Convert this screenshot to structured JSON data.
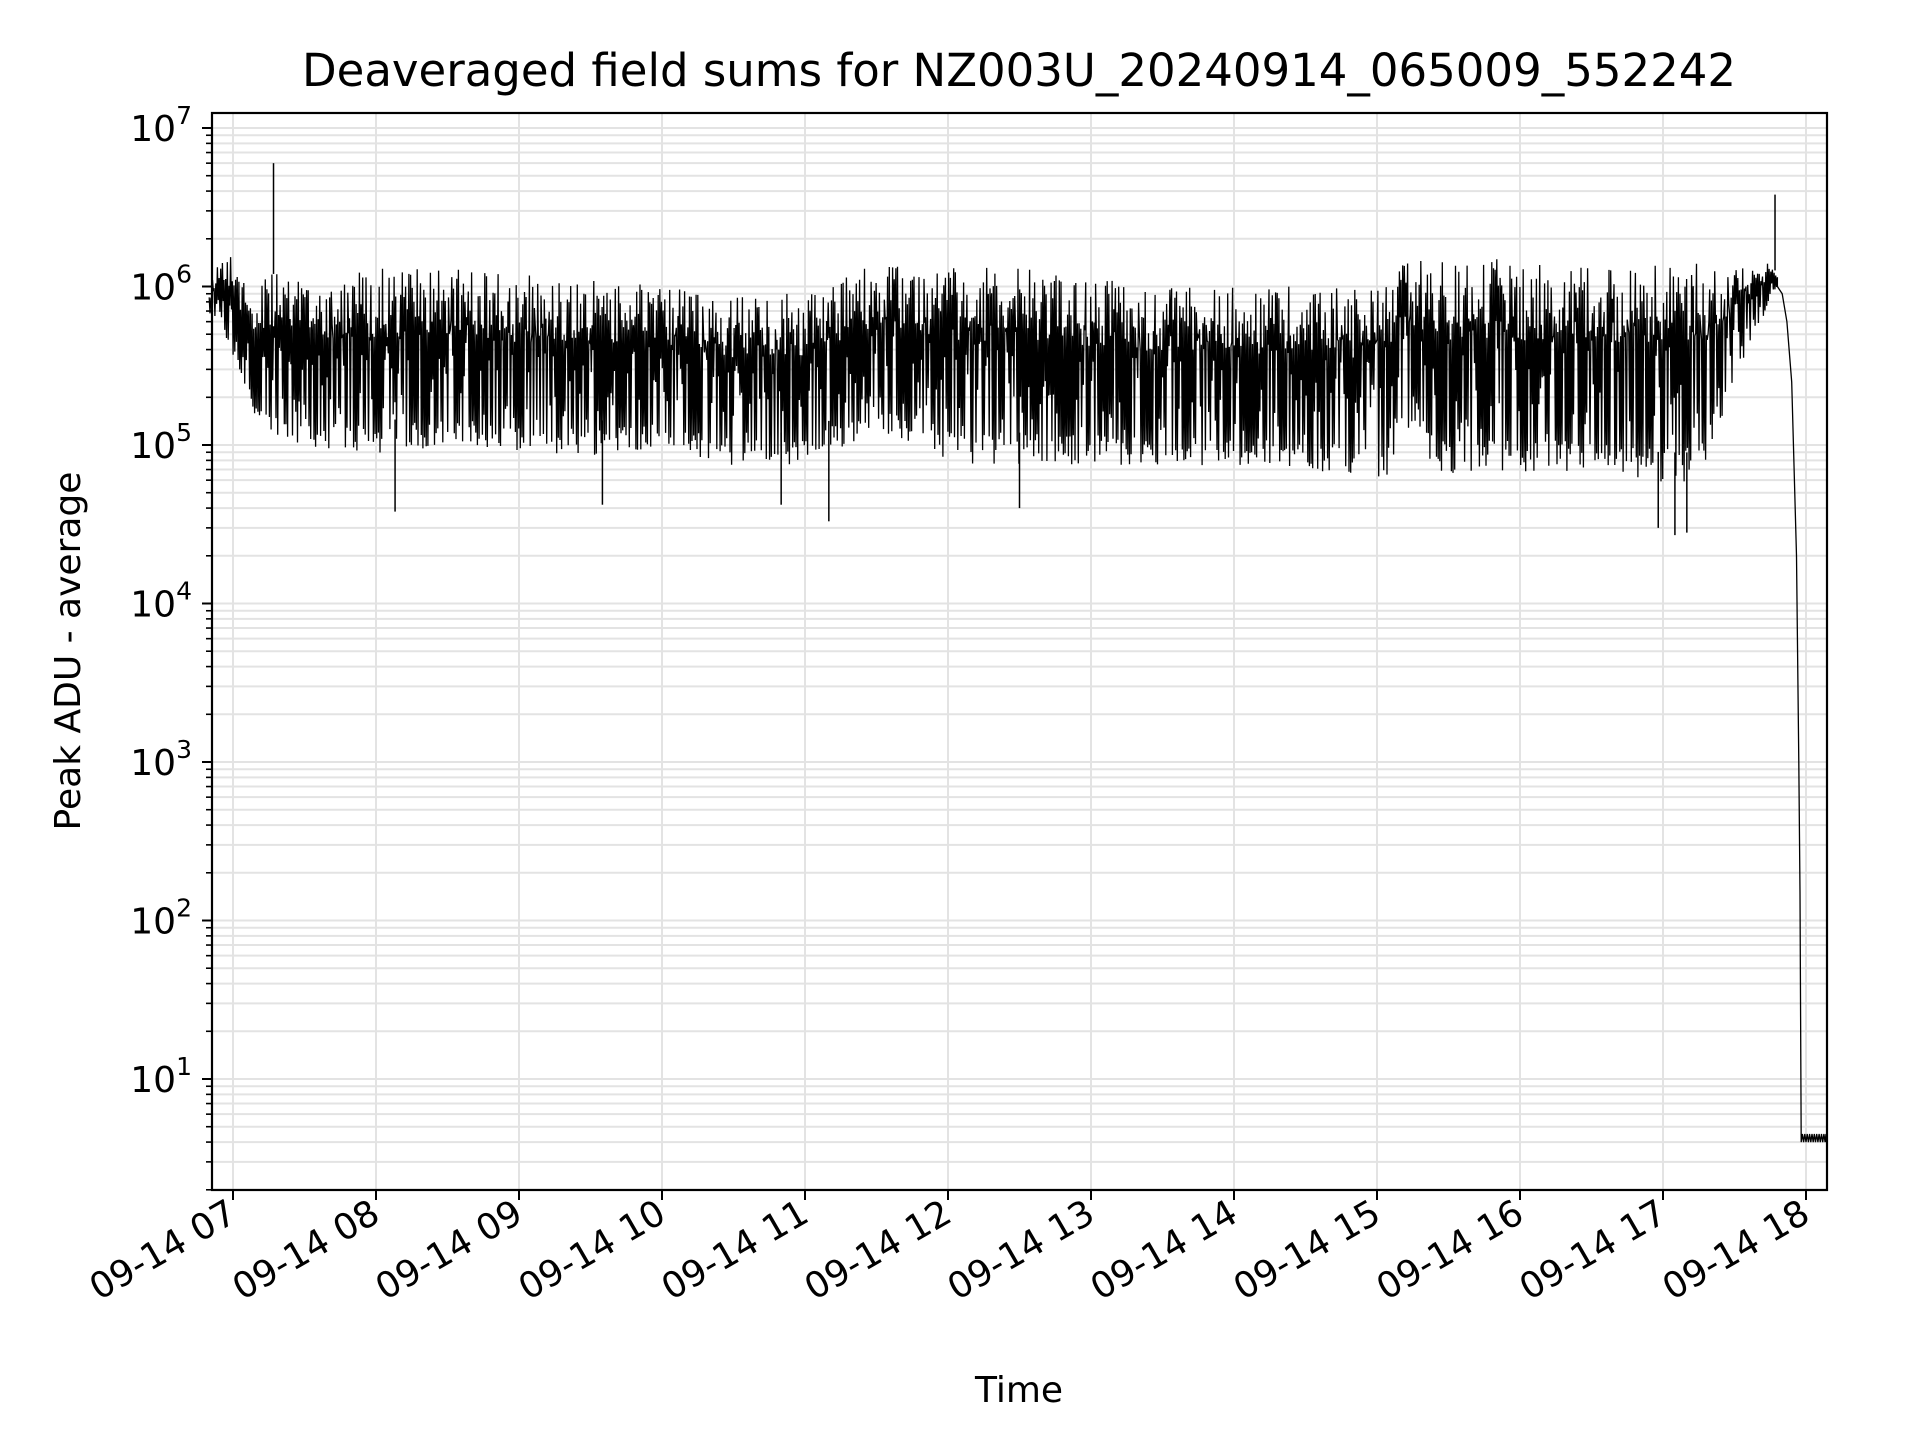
{
  "chart_data": {
    "type": "line",
    "title": "Deaveraged field sums for NZ003U_20240914_065009_552242",
    "xlabel": "Time",
    "ylabel": "Peak ADU - average",
    "yscale": "log",
    "ylim": [
      2,
      10000000
    ],
    "xlim": [
      "2024-09-14 06:50",
      "2024-09-14 18:00"
    ],
    "grid": true,
    "x_ticks": [
      "09-14 07",
      "09-14 08",
      "09-14 09",
      "09-14 10",
      "09-14 11",
      "09-14 12",
      "09-14 13",
      "09-14 14",
      "09-14 15",
      "09-14 16",
      "09-14 17",
      "09-14 18"
    ],
    "y_ticks": [
      {
        "base": "10",
        "exp": "1",
        "value": 10
      },
      {
        "base": "10",
        "exp": "2",
        "value": 100
      },
      {
        "base": "10",
        "exp": "3",
        "value": 1000
      },
      {
        "base": "10",
        "exp": "4",
        "value": 10000
      },
      {
        "base": "10",
        "exp": "5",
        "value": 100000
      },
      {
        "base": "10",
        "exp": "6",
        "value": 1000000
      },
      {
        "base": "10",
        "exp": "7",
        "value": 10000000
      }
    ],
    "line_color": "#000000",
    "series": [
      {
        "envelope": [
          {
            "t": "06:50",
            "upper": 1000000,
            "lower": 500000
          },
          {
            "t": "06:54",
            "upper": 1500000,
            "lower": 600000
          },
          {
            "t": "07:00",
            "upper": 1800000,
            "lower": 300000
          },
          {
            "t": "07:05",
            "upper": 1000000,
            "lower": 200000
          },
          {
            "t": "07:12",
            "upper": 1200000,
            "lower": 90000
          },
          {
            "t": "07:30",
            "upper": 1200000,
            "lower": 80000
          },
          {
            "t": "08:00",
            "upper": 1300000,
            "lower": 70000
          },
          {
            "t": "08:30",
            "upper": 1300000,
            "lower": 80000
          },
          {
            "t": "09:00",
            "upper": 1200000,
            "lower": 70000
          },
          {
            "t": "09:30",
            "upper": 1100000,
            "lower": 70000
          },
          {
            "t": "10:00",
            "upper": 1000000,
            "lower": 80000
          },
          {
            "t": "10:30",
            "upper": 900000,
            "lower": 60000
          },
          {
            "t": "11:00",
            "upper": 900000,
            "lower": 60000
          },
          {
            "t": "11:30",
            "upper": 1400000,
            "lower": 100000
          },
          {
            "t": "11:50",
            "upper": 1300000,
            "lower": 80000
          },
          {
            "t": "12:00",
            "upper": 1400000,
            "lower": 60000
          },
          {
            "t": "12:30",
            "upper": 1300000,
            "lower": 60000
          },
          {
            "t": "13:00",
            "upper": 1200000,
            "lower": 60000
          },
          {
            "t": "13:30",
            "upper": 1000000,
            "lower": 60000
          },
          {
            "t": "14:00",
            "upper": 1000000,
            "lower": 60000
          },
          {
            "t": "14:30",
            "upper": 1000000,
            "lower": 55000
          },
          {
            "t": "15:05",
            "upper": 1000000,
            "lower": 50000
          },
          {
            "t": "15:10",
            "upper": 1500000,
            "lower": 120000
          },
          {
            "t": "15:20",
            "upper": 1500000,
            "lower": 60000
          },
          {
            "t": "15:30",
            "upper": 1500000,
            "lower": 50000
          },
          {
            "t": "16:00",
            "upper": 1500000,
            "lower": 50000
          },
          {
            "t": "16:30",
            "upper": 1450000,
            "lower": 50000
          },
          {
            "t": "17:00",
            "upper": 1400000,
            "lower": 45000
          },
          {
            "t": "17:15",
            "upper": 1400000,
            "lower": 45000
          },
          {
            "t": "17:30",
            "upper": 1400000,
            "lower": 200000
          },
          {
            "t": "17:45",
            "upper": 1400000,
            "lower": 800000
          },
          {
            "t": "17:48",
            "upper": 1200000,
            "lower": 1000000
          }
        ],
        "spikes": [
          {
            "t": "07:17",
            "y": 6000000
          },
          {
            "t": "17:47",
            "y": 3800000
          },
          {
            "t": "08:08",
            "y": 38000
          },
          {
            "t": "09:35",
            "y": 42000
          },
          {
            "t": "10:50",
            "y": 42000
          },
          {
            "t": "11:10",
            "y": 33000
          },
          {
            "t": "12:30",
            "y": 40000
          },
          {
            "t": "16:58",
            "y": 30000
          },
          {
            "t": "17:05",
            "y": 27000
          },
          {
            "t": "17:10",
            "y": 28000
          }
        ],
        "decline": [
          {
            "t": "17:48",
            "y": 1000000
          },
          {
            "t": "17:50",
            "y": 900000
          },
          {
            "t": "17:52",
            "y": 600000
          },
          {
            "t": "17:54",
            "y": 250000
          },
          {
            "t": "17:56",
            "y": 20000
          },
          {
            "t": "17:57",
            "y": 1000
          },
          {
            "t": "17:57.5",
            "y": 150
          },
          {
            "t": "17:58",
            "y": 4
          }
        ],
        "tail": {
          "from": "17:58",
          "to": "18:10",
          "low": 4,
          "high": 4.5
        }
      }
    ]
  }
}
